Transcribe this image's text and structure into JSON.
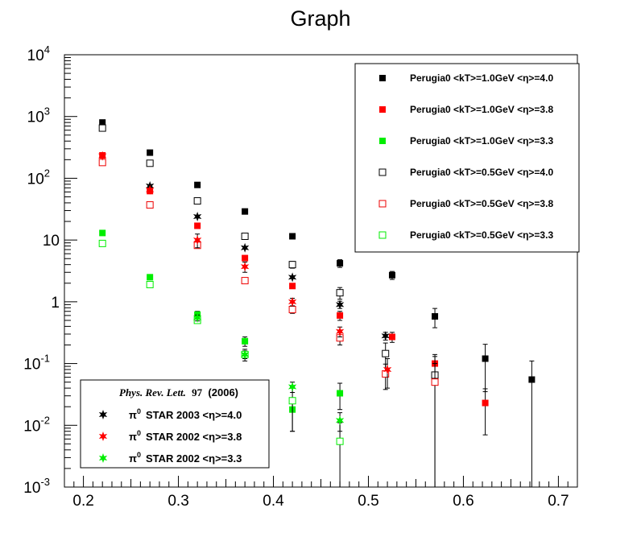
{
  "chart_data": {
    "type": "scatter",
    "title": "Graph",
    "xlabel": "",
    "ylabel": "",
    "xlim": [
      0.18,
      0.72
    ],
    "ylim": [
      0.001,
      10000
    ],
    "yscale": "log",
    "x_ticks": [
      "0.2",
      "0.3",
      "0.4",
      "0.5",
      "0.6",
      "0.7"
    ],
    "y_ticks": [
      {
        "base": "10",
        "exp": "-3"
      },
      {
        "base": "10",
        "exp": "-2"
      },
      {
        "base": "10",
        "exp": "-1"
      },
      {
        "base": "1",
        "exp": ""
      },
      {
        "base": "10",
        "exp": ""
      },
      {
        "base": "10",
        "exp": "2"
      },
      {
        "base": "10",
        "exp": "3"
      },
      {
        "base": "10",
        "exp": "4"
      }
    ],
    "legend_placement": "top-right",
    "series": [
      {
        "name": "Perugia0 <kT>=1.0GeV <η>=4.0",
        "color": "#000000",
        "marker": "filled-square",
        "x": [
          0.22,
          0.27,
          0.32,
          0.37,
          0.42,
          0.47,
          0.525,
          0.57,
          0.623,
          0.672
        ],
        "y": [
          800,
          260,
          78,
          29,
          11.5,
          4.2,
          2.7,
          0.58,
          0.12,
          0.055
        ],
        "err": [
          0,
          0,
          0,
          0,
          0,
          0.6,
          0.4,
          0.2,
          0.085,
          0.055
        ]
      },
      {
        "name": "Perugia0 <kT>=1.0GeV <η>=3.8",
        "color": "#ff0000",
        "marker": "filled-square",
        "x": [
          0.22,
          0.27,
          0.32,
          0.37,
          0.42,
          0.47,
          0.525,
          0.57,
          0.623
        ],
        "y": [
          235,
          62,
          17,
          5.1,
          1.8,
          0.6,
          0.27,
          0.1,
          0.023
        ],
        "err": [
          0,
          0,
          0,
          0,
          0,
          0.1,
          0.05,
          0.04,
          0.016
        ]
      },
      {
        "name": "Perugia0 <kT>=1.0GeV <η>=3.3",
        "color": "#00ee00",
        "marker": "filled-square",
        "x": [
          0.22,
          0.27,
          0.32,
          0.37,
          0.42,
          0.47
        ],
        "y": [
          13,
          2.5,
          0.62,
          0.23,
          0.018,
          0.033
        ],
        "err": [
          0,
          0,
          0.08,
          0.04,
          0.01,
          0.015
        ]
      },
      {
        "name": "Perugia0 <kT>=0.5GeV <η>=4.0",
        "color": "#000000",
        "marker": "open-square",
        "x": [
          0.22,
          0.27,
          0.32,
          0.37,
          0.42,
          0.47,
          0.518,
          0.57
        ],
        "y": [
          650,
          175,
          43,
          11.5,
          4.0,
          1.4,
          0.145,
          0.065
        ],
        "err": [
          0,
          0,
          0,
          0,
          0.5,
          0.3,
          0.07,
          0.065
        ]
      },
      {
        "name": "Perugia0 <kT>=0.5GeV <η>=3.8",
        "color": "#ee0000",
        "marker": "open-square",
        "x": [
          0.22,
          0.27,
          0.32,
          0.37,
          0.42,
          0.47,
          0.518,
          0.57
        ],
        "y": [
          180,
          37,
          8.2,
          2.2,
          0.75,
          0.26,
          0.068,
          0.05
        ],
        "err": [
          0,
          0,
          0,
          0,
          0.1,
          0.06,
          0.03,
          0.05
        ]
      },
      {
        "name": "Perugia0 <kT>=0.5GeV <η>=3.3",
        "color": "#00ee00",
        "marker": "open-square",
        "x": [
          0.22,
          0.27,
          0.32,
          0.37,
          0.42,
          0.47
        ],
        "y": [
          8.8,
          1.9,
          0.5,
          0.14,
          0.025,
          0.0055
        ],
        "err": [
          0,
          0,
          0,
          0.02,
          0.017,
          0.0055
        ]
      },
      {
        "name": "π0 STAR 2003   <η>=4.0",
        "color": "#000000",
        "marker": "star",
        "x": [
          0.27,
          0.32,
          0.37,
          0.42,
          0.47,
          0.518
        ],
        "y": [
          75,
          24,
          7.5,
          2.5,
          0.9,
          0.28
        ],
        "err": [
          0,
          0,
          0,
          0,
          0.12,
          0.04
        ]
      },
      {
        "name": "π0 STAR 2002   <η>=3.8",
        "color": "#ff0000",
        "marker": "star",
        "x": [
          0.22,
          0.27,
          0.32,
          0.37,
          0.42,
          0.47,
          0.52
        ],
        "y": [
          230,
          65,
          10,
          3.7,
          1.0,
          0.33,
          0.08
        ],
        "err": [
          0,
          0,
          2.5,
          0.7,
          0.14,
          0.06,
          0.04
        ]
      },
      {
        "name": "π0 STAR 2002   <η>=3.3",
        "color": "#00ee00",
        "marker": "star",
        "x": [
          0.32,
          0.37,
          0.42,
          0.47
        ],
        "y": [
          0.55,
          0.14,
          0.042,
          0.012
        ],
        "err": [
          0.06,
          0.03,
          0.008,
          0.004
        ]
      }
    ],
    "legend_main": [
      {
        "series": 0,
        "label": "Perugia0 <kT>=1.0GeV <η>=4.0"
      },
      {
        "series": 1,
        "label": "Perugia0 <kT>=1.0GeV <η>=3.8"
      },
      {
        "series": 2,
        "label": "Perugia0 <kT>=1.0GeV <η>=3.3"
      },
      {
        "series": 3,
        "label": "Perugia0 <kT>=0.5GeV <η>=4.0"
      },
      {
        "series": 4,
        "label": "Perugia0 <kT>=0.5GeV <η>=3.8"
      },
      {
        "series": 5,
        "label": "Perugia0 <kT>=0.5GeV <η>=3.3"
      }
    ],
    "legend_data": {
      "citation_journal": "Phys. Rev. Lett.",
      "citation_volume": "97",
      "citation_year": "(2006)",
      "entries": [
        {
          "series": 6,
          "particle": "π",
          "sup": "0",
          "label": "STAR 2003   <η>=4.0"
        },
        {
          "series": 7,
          "particle": "π",
          "sup": "0",
          "label": "STAR 2002   <η>=3.8"
        },
        {
          "series": 8,
          "particle": "π",
          "sup": "0",
          "label": "STAR 2002   <η>=3.3"
        }
      ]
    }
  }
}
